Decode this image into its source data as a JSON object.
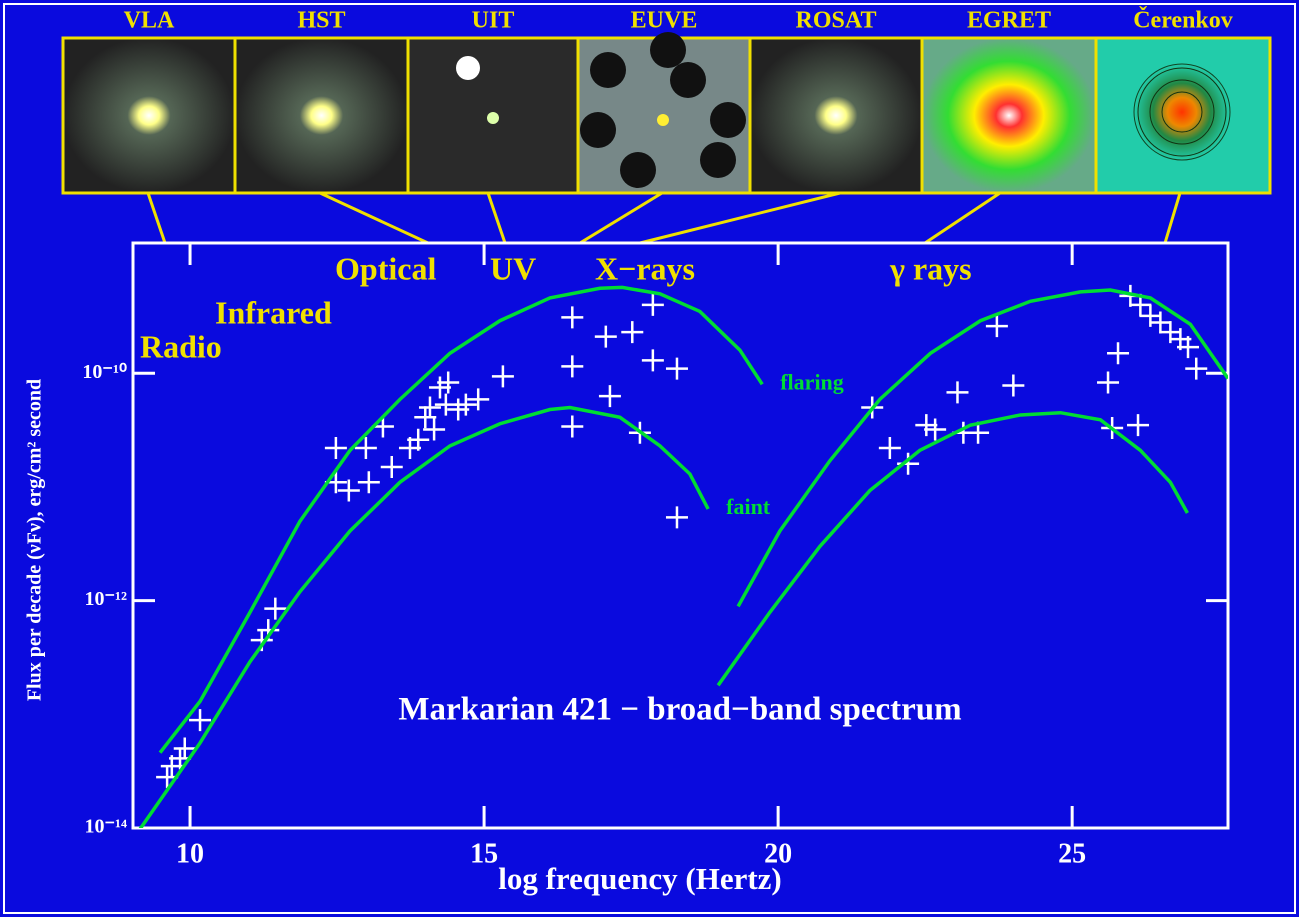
{
  "chart_data": {
    "type": "scatter",
    "title": "Markarian 421 − broad−band spectrum",
    "x_label": "log frequency (Hertz)",
    "y_label": "Flux per decade (νFν), erg/cm² second",
    "panels": [
      "VLA",
      "HST",
      "UIT",
      "EUVE",
      "ROSAT",
      "EGRET",
      "Čerenkov"
    ],
    "annotations": [
      "Radio",
      "Infrared",
      "Optical",
      "UV",
      "X−rays",
      "γ rays"
    ],
    "xlim": [
      9.03,
      27.65
    ],
    "ylim": [
      1e-14,
      1.4e-09
    ],
    "log_y": true,
    "xticks": [
      10,
      15,
      20,
      25
    ],
    "yticks": [
      {
        "value": 1e-14,
        "label": "10⁻¹⁴"
      },
      {
        "value": 1e-12,
        "label": "10⁻¹²"
      },
      {
        "value": 1e-10,
        "label": "10⁻¹⁰"
      }
    ],
    "series": [
      {
        "style": "points",
        "color": "#ffffff",
        "x": [
          9.61,
          9.69,
          9.83,
          9.91,
          10.17,
          11.22,
          11.33,
          11.45,
          12.48,
          12.48,
          12.7,
          12.99,
          13.04,
          13.28,
          13.43,
          13.74,
          13.88,
          14.0,
          14.08,
          14.15,
          14.25,
          14.35,
          14.39,
          14.56,
          14.69,
          14.9,
          15.32,
          16.5,
          16.5,
          16.5,
          17.07,
          17.14,
          17.52,
          17.65,
          17.87,
          17.87,
          18.28,
          18.28,
          21.6,
          21.9,
          22.21,
          22.52,
          22.67,
          23.05,
          23.15,
          23.4,
          23.72,
          24.0,
          25.61,
          25.78,
          25.68,
          26.12,
          25.99,
          26.16,
          26.33,
          26.5,
          26.67,
          26.84,
          26.97,
          27.11
        ],
        "values": [
          2.8e-14,
          3.5e-14,
          4.1e-14,
          5e-14,
          8.9e-14,
          4.5e-13,
          5.5e-13,
          8.5e-13,
          2.2e-11,
          1.1e-11,
          9.3e-12,
          2.2e-11,
          1.1e-11,
          3.4e-11,
          1.5e-11,
          2.2e-11,
          2.6e-11,
          4.1e-11,
          5e-11,
          3.2e-11,
          7.5e-11,
          5.3e-11,
          8.3e-11,
          4.8e-11,
          5.3e-11,
          5.9e-11,
          9.4e-11,
          3.1e-10,
          1.15e-10,
          3.4e-11,
          2.1e-10,
          6.3e-11,
          2.3e-10,
          3e-11,
          4e-10,
          1.3e-10,
          1.1e-10,
          5.4e-12,
          5e-11,
          2.2e-11,
          1.6e-11,
          3.5e-11,
          3.2e-11,
          6.8e-11,
          3e-11,
          3e-11,
          2.6e-10,
          7.8e-11,
          8.3e-11,
          1.5e-10,
          3.3e-11,
          3.5e-11,
          4.8e-10,
          4e-10,
          3.2e-10,
          2.8e-10,
          2.3e-10,
          2e-10,
          1.7e-10,
          1.1e-10
        ]
      },
      {
        "name": "flaring",
        "style": "line",
        "color": "#00dd33",
        "x": [
          9.49,
          10.17,
          11.02,
          11.87,
          12.72,
          13.57,
          14.42,
          15.27,
          16.12,
          16.97,
          17.35,
          17.99,
          18.67,
          19.35,
          19.73,
          null,
          19.32,
          20.03,
          20.88,
          21.73,
          22.59,
          23.44,
          24.29,
          25.14,
          25.65,
          26.33,
          27.01,
          27.65
        ],
        "values": [
          4.6e-14,
          1.3e-13,
          7.9e-13,
          5e-12,
          2.1e-11,
          5.9e-11,
          1.5e-10,
          2.9e-10,
          4.6e-10,
          5.6e-10,
          5.7e-10,
          5e-10,
          3.5e-10,
          1.6e-10,
          8e-11,
          null,
          8.9e-13,
          4.1e-12,
          1.7e-11,
          5.9e-11,
          1.5e-10,
          2.9e-10,
          4.3e-10,
          5.2e-10,
          5.4e-10,
          4.6e-10,
          2.7e-10,
          9e-11
        ]
      },
      {
        "name": "faint",
        "style": "line",
        "color": "#00dd33",
        "x": [
          9.15,
          10.17,
          11.02,
          11.87,
          12.72,
          13.57,
          14.42,
          15.27,
          16.12,
          16.46,
          17.31,
          17.99,
          18.5,
          18.81,
          null,
          18.98,
          19.86,
          20.71,
          21.56,
          22.41,
          23.27,
          24.12,
          24.8,
          25.48,
          26.16,
          26.67,
          26.96
        ],
        "values": [
          9.8e-15,
          5.6e-14,
          2.9e-13,
          1.2e-12,
          4.1e-12,
          1.1e-11,
          2.3e-11,
          3.6e-11,
          4.8e-11,
          5e-11,
          4.1e-11,
          2.3e-11,
          1.3e-11,
          6.4e-12,
          null,
          1.8e-13,
          7.9e-13,
          3e-12,
          9.3e-12,
          2.1e-11,
          3.5e-11,
          4.3e-11,
          4.5e-11,
          3.9e-11,
          2.1e-11,
          1.1e-11,
          5.9e-12
        ]
      }
    ]
  }
}
